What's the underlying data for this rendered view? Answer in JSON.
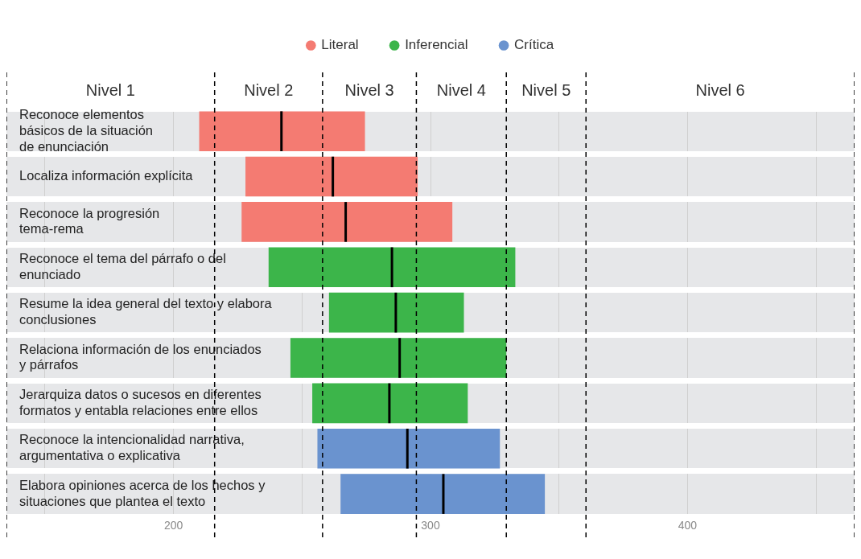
{
  "chart_data": {
    "type": "box",
    "orientation": "horizontal",
    "categories": [
      "Reconoce elementos básicos de la situación de enunciación",
      "Localiza información explícita",
      "Reconoce la progresión tema-rema",
      "Reconoce el tema del párrafo o del enunciado",
      "Resume la idea general del texto y elabora conclusiones",
      "Relaciona información de los enunciados y párrafos",
      "Jerarquiza datos o sucesos en diferentes formatos y entabla relaciones entre ellos",
      "Reconoce la intencionalidad narrativa, argumentativa o explicativa",
      "Elabora opiniones acerca de los hechos y situaciones que plantea el texto"
    ],
    "series": [
      {
        "name": "Literal",
        "color": "#f47b72",
        "boxes": [
          {
            "low": 210,
            "q1": 210,
            "median": 242,
            "q3": 274.5,
            "high": 274.5
          },
          {
            "low": 228,
            "q1": 228,
            "median": 262,
            "q3": 295,
            "high": 295
          },
          {
            "low": 226.5,
            "q1": 226.5,
            "median": 267,
            "q3": 308.5,
            "high": 308.5
          },
          null,
          null,
          null,
          null,
          null,
          null
        ]
      },
      {
        "name": "Inferencial",
        "color": "#3cb54a",
        "boxes": [
          null,
          null,
          null,
          {
            "low": 237,
            "q1": 237,
            "median": 285,
            "q3": 333,
            "high": 333
          },
          {
            "low": 260.5,
            "q1": 260.5,
            "median": 286.5,
            "q3": 313,
            "high": 313
          },
          {
            "low": 245.5,
            "q1": 245.5,
            "median": 288,
            "q3": 329.5,
            "high": 329.5
          },
          {
            "low": 254,
            "q1": 254,
            "median": 284,
            "q3": 314.5,
            "high": 314.5
          },
          null,
          null
        ]
      },
      {
        "name": "Crítica",
        "color": "#6a93cf",
        "boxes": [
          null,
          null,
          null,
          null,
          null,
          null,
          null,
          {
            "low": 256,
            "q1": 256,
            "median": 291,
            "q3": 327,
            "high": 327
          },
          {
            "low": 265,
            "q1": 265,
            "median": 305,
            "q3": 344.5,
            "high": 344.5
          }
        ]
      }
    ],
    "xlim": [
      135,
      465
    ],
    "xticks": [
      {
        "value": 150,
        "label": null
      },
      200,
      {
        "value": 250,
        "label": null
      },
      300,
      {
        "value": 350,
        "label": null
      },
      400,
      {
        "value": 450,
        "label": null
      }
    ],
    "grid": "x",
    "legend": "top",
    "ref_lines": [
      {
        "axis": "x",
        "value": 135,
        "color": "#000000",
        "line_style": "dashed"
      },
      {
        "axis": "x",
        "value": 216,
        "color": "#000000",
        "line_style": "dashed"
      },
      {
        "axis": "x",
        "value": 258,
        "color": "#000000",
        "line_style": "dashed"
      },
      {
        "axis": "x",
        "value": 294.5,
        "color": "#000000",
        "line_style": "dashed"
      },
      {
        "axis": "x",
        "value": 329.5,
        "color": "#000000",
        "line_style": "dashed"
      },
      {
        "axis": "x",
        "value": 360.5,
        "color": "#000000",
        "line_style": "dashed"
      },
      {
        "axis": "x",
        "value": 465,
        "color": "#000000",
        "line_style": "dashed"
      }
    ],
    "annotations": [
      "Nivel 1",
      "Nivel 2",
      "Nivel 3",
      "Nivel 4",
      "Nivel 5",
      "Nivel 6"
    ]
  }
}
